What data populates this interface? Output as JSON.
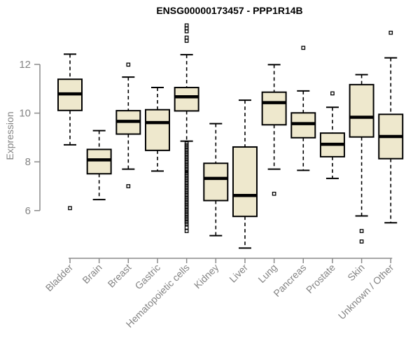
{
  "page": {
    "title": "ENSG00000173457 - PPP1R14B"
  },
  "chart_data": {
    "type": "boxplot",
    "title": "ENSG00000173457 - PPP1R14B",
    "ylabel": "Expression",
    "xlabel": "",
    "y_ticks": [
      6,
      8,
      10,
      12
    ],
    "ylim": [
      4.3,
      13.8
    ],
    "grid": false,
    "legend": false,
    "colors": {
      "box_fill": "#EEE8CD",
      "box_stroke": "#000000",
      "axis": "#8a8a8a",
      "label_text": "#848484",
      "title_text": "#000000"
    },
    "categories": [
      "Bladder",
      "Brain",
      "Breast",
      "Gastric",
      "Hematopoietic cells",
      "Kidney",
      "Liver",
      "Lung",
      "Pancreas",
      "Prostate",
      "Skin",
      "Unknown / Other"
    ],
    "series": [
      {
        "name": "Bladder",
        "whisker_low": 8.7,
        "q1": 10.11,
        "median": 10.79,
        "q3": 11.39,
        "whisker_high": 12.42,
        "outliers": [
          6.1
        ]
      },
      {
        "name": "Brain",
        "whisker_low": 6.45,
        "q1": 7.51,
        "median": 8.08,
        "q3": 8.51,
        "whisker_high": 9.28,
        "outliers": []
      },
      {
        "name": "Breast",
        "whisker_low": 7.7,
        "q1": 9.14,
        "median": 9.66,
        "q3": 10.1,
        "whisker_high": 11.48,
        "outliers": [
          11.99,
          7.0
        ]
      },
      {
        "name": "Gastric",
        "whisker_low": 7.62,
        "q1": 8.47,
        "median": 9.61,
        "q3": 10.14,
        "whisker_high": 11.05,
        "outliers": []
      },
      {
        "name": "Hematopoietic cells",
        "whisker_low": 8.85,
        "q1": 10.09,
        "median": 10.67,
        "q3": 11.05,
        "whisker_high": 12.4,
        "outliers": [
          13.6,
          13.48,
          13.36,
          13.1,
          12.97,
          8.76,
          8.69,
          8.62,
          8.55,
          8.48,
          8.41,
          8.34,
          8.27,
          8.2,
          8.13,
          8.06,
          7.99,
          7.92,
          7.85,
          7.78,
          7.71,
          7.64,
          7.55,
          7.48,
          7.41,
          7.34,
          7.27,
          7.2,
          7.13,
          7.06,
          6.99,
          6.92,
          6.85,
          6.78,
          6.71,
          6.64,
          6.57,
          6.5,
          6.43,
          6.36,
          6.29,
          6.22,
          6.15,
          6.08,
          6.01,
          5.94,
          5.87,
          5.8,
          5.73,
          5.66,
          5.59,
          5.52,
          5.45,
          5.3,
          5.16
        ]
      },
      {
        "name": "Kidney",
        "whisker_low": 4.97,
        "q1": 6.41,
        "median": 7.32,
        "q3": 7.94,
        "whisker_high": 9.57,
        "outliers": []
      },
      {
        "name": "Liver",
        "whisker_low": 4.46,
        "q1": 5.76,
        "median": 6.62,
        "q3": 8.61,
        "whisker_high": 10.53,
        "outliers": []
      },
      {
        "name": "Lung",
        "whisker_low": 7.7,
        "q1": 9.52,
        "median": 10.43,
        "q3": 10.86,
        "whisker_high": 11.99,
        "outliers": [
          6.69
        ]
      },
      {
        "name": "Pancreas",
        "whisker_low": 7.65,
        "q1": 8.99,
        "median": 9.57,
        "q3": 10.01,
        "whisker_high": 10.91,
        "outliers": [
          12.68
        ]
      },
      {
        "name": "Prostate",
        "whisker_low": 7.32,
        "q1": 8.21,
        "median": 8.72,
        "q3": 9.18,
        "whisker_high": 10.24,
        "outliers": [
          10.81
        ]
      },
      {
        "name": "Skin",
        "whisker_low": 5.78,
        "q1": 9.02,
        "median": 9.83,
        "q3": 11.17,
        "whisker_high": 11.58,
        "outliers": [
          5.16,
          4.73
        ]
      },
      {
        "name": "Unknown / Other",
        "whisker_low": 5.5,
        "q1": 8.13,
        "median": 9.04,
        "q3": 9.95,
        "whisker_high": 12.27,
        "outliers": [
          13.3
        ]
      }
    ]
  }
}
